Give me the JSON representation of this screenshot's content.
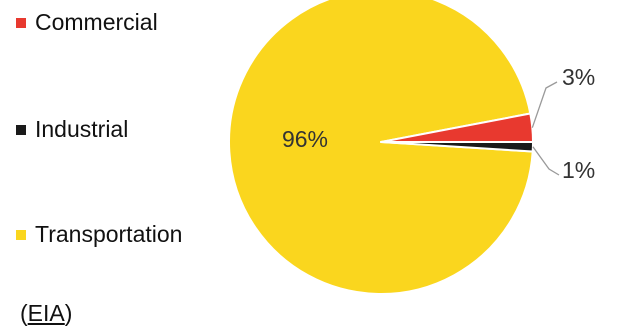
{
  "chart_data": {
    "type": "pie",
    "title": "",
    "slices": [
      {
        "label": "Transportation",
        "value": 96,
        "color": "#FAD61E",
        "label_text": "96%"
      },
      {
        "label": "Commercial",
        "value": 3,
        "color": "#E8392F",
        "label_text": "3%"
      },
      {
        "label": "Industrial",
        "value": 1,
        "color": "#1A1A1A",
        "label_text": "1%"
      }
    ],
    "legend_placement": "left"
  },
  "legend": [
    {
      "label": "Commercial",
      "color": "#E8392F"
    },
    {
      "label": "Industrial",
      "color": "#1A1A1A"
    },
    {
      "label": "Transportation",
      "color": "#FAD61E"
    }
  ],
  "source": {
    "open": "(",
    "link": "EIA",
    "close": ")"
  }
}
